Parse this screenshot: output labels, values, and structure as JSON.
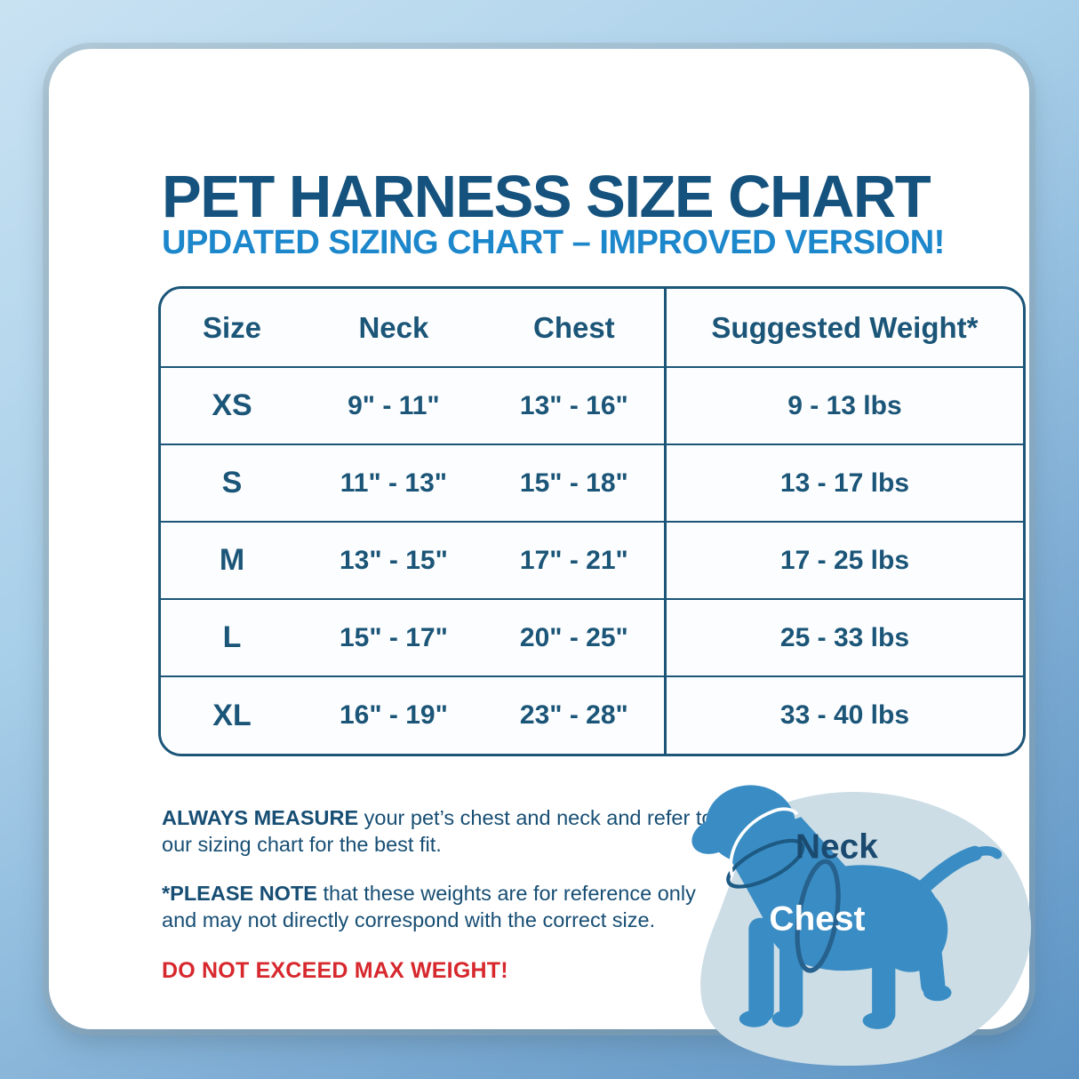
{
  "header": {
    "title": "PET HARNESS SIZE CHART",
    "subtitle": "UPDATED SIZING CHART – IMPROVED VERSION!"
  },
  "table": {
    "headers": [
      "Size",
      "Neck",
      "Chest",
      "Suggested Weight*"
    ],
    "rows": [
      {
        "size": "XS",
        "neck": "9\" - 11\"",
        "chest": "13\" - 16\"",
        "weight": "9 - 13 lbs"
      },
      {
        "size": "S",
        "neck": "11\" - 13\"",
        "chest": "15\" - 18\"",
        "weight": "13 - 17 lbs"
      },
      {
        "size": "M",
        "neck": "13\" - 15\"",
        "chest": "17\" - 21\"",
        "weight": "17 - 25 lbs"
      },
      {
        "size": "L",
        "neck": "15\" - 17\"",
        "chest": "20\" - 25\"",
        "weight": "25 - 33 lbs"
      },
      {
        "size": "XL",
        "neck": "16\" - 19\"",
        "chest": "23\" - 28\"",
        "weight": "33 - 40 lbs"
      }
    ]
  },
  "notes": {
    "measure_lead": "ALWAYS MEASURE",
    "measure_text": " your pet’s chest and neck and refer to our sizing chart for the best fit.",
    "reference_lead": "*PLEASE NOTE",
    "reference_text": " that these weights are for reference only and may not directly correspond with the correct size.",
    "warning": "DO NOT EXCEED MAX WEIGHT!"
  },
  "diagram": {
    "neck_label": "Neck",
    "chest_label": "Chest"
  },
  "colors": {
    "title_navy": "#15537e",
    "subtitle_blue": "#1d87cc",
    "table_navy": "#1b5578",
    "warning_red": "#d7282d",
    "dog_blue": "#3a8dc4",
    "blob_gray_blue": "#ccdde6",
    "background_top": "#c9e2f2",
    "background_bottom": "#5d94c4"
  }
}
